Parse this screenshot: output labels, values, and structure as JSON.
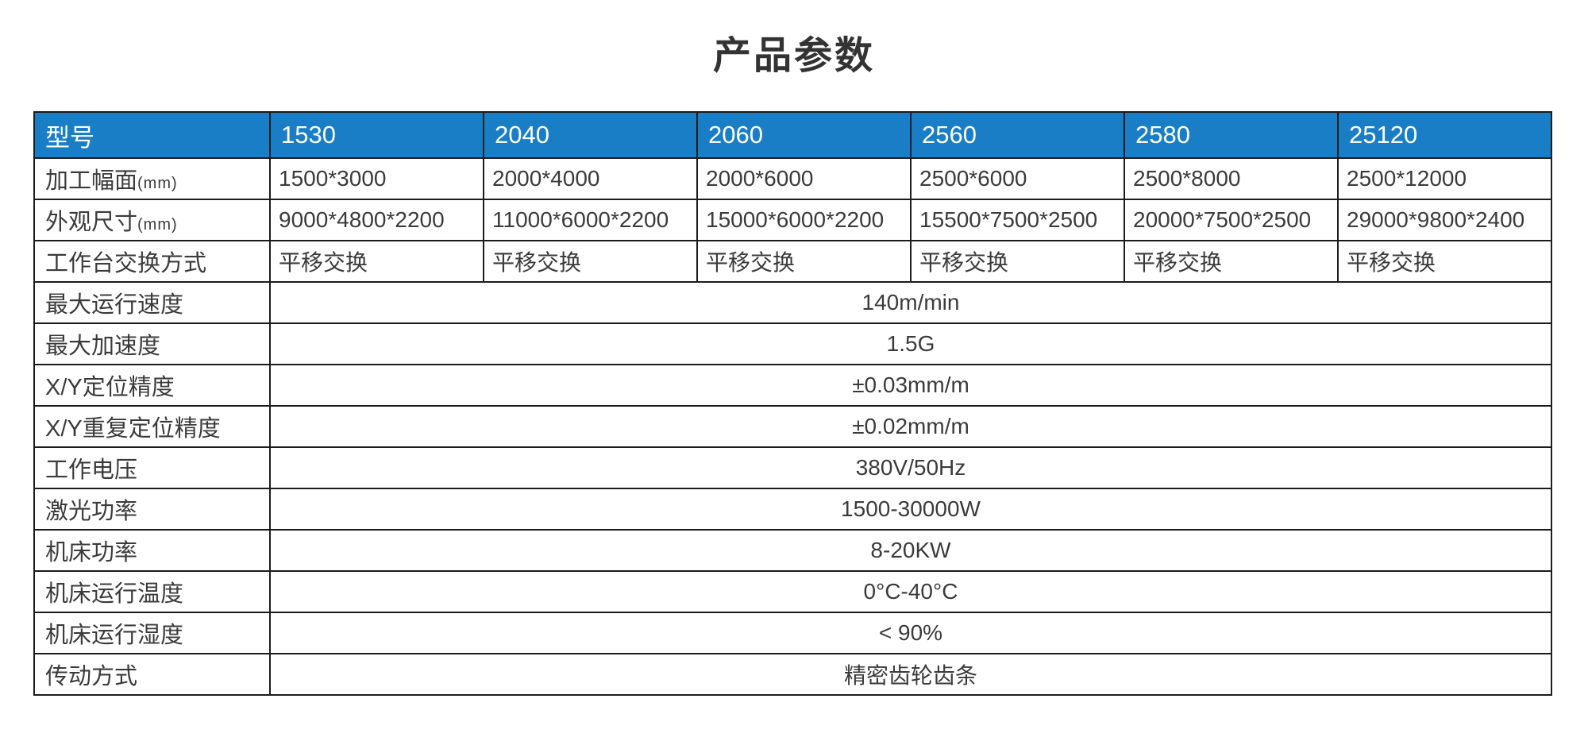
{
  "page": {
    "title": "产品参数"
  },
  "colors": {
    "header_bg": "#1a7ec6",
    "header_text": "#ffffff",
    "body_text": "#3b3b3b",
    "border": "#1c1c1c",
    "background": "#ffffff"
  },
  "table": {
    "header": {
      "cells": [
        "型号",
        "1530",
        "2040",
        "2060",
        "2560",
        "2580",
        "25120"
      ]
    },
    "spec_rows": [
      {
        "label": "加工幅面",
        "suffix": "(mm)",
        "values": [
          "1500*3000",
          "2000*4000",
          "2000*6000",
          "2500*6000",
          "2500*8000",
          "2500*12000"
        ]
      },
      {
        "label": "外观尺寸",
        "suffix": "(mm)",
        "values": [
          "9000*4800*2200",
          "11000*6000*2200",
          "15000*6000*2200",
          "15500*7500*2500",
          "20000*7500*2500",
          "29000*9800*2400"
        ]
      },
      {
        "label": "工作台交换方式",
        "suffix": "",
        "values": [
          "平移交换",
          "平移交换",
          "平移交换",
          "平移交换",
          "平移交换",
          "平移交换"
        ]
      }
    ],
    "merged_rows": [
      {
        "label": "最大运行速度",
        "value": "140m/min"
      },
      {
        "label": "最大加速度",
        "value": "1.5G"
      },
      {
        "label": "X/Y定位精度",
        "value": "±0.03mm/m"
      },
      {
        "label": "X/Y重复定位精度",
        "value": "±0.02mm/m"
      },
      {
        "label": "工作电压",
        "value": "380V/50Hz"
      },
      {
        "label": "激光功率",
        "value": "1500-30000W"
      },
      {
        "label": "机床功率",
        "value": "8-20KW"
      },
      {
        "label": "机床运行温度",
        "value": "0°C-40°C"
      },
      {
        "label": "机床运行湿度",
        "value": "< 90%"
      },
      {
        "label": "传动方式",
        "value": "精密齿轮齿条"
      }
    ]
  }
}
